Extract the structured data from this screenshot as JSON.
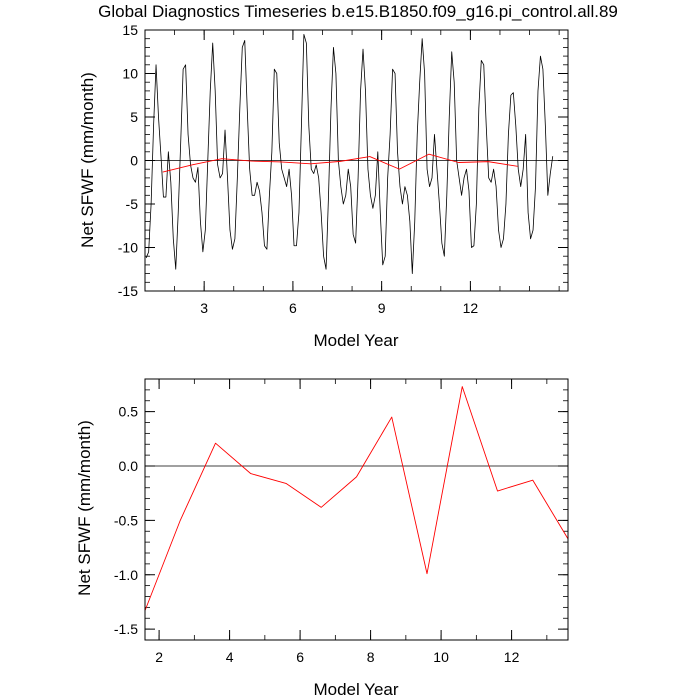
{
  "title": "Global Diagnostics Timeseries b.e15.B1850.f09_g16.pi_control.all.89",
  "colors": {
    "monthly": "#000000",
    "annual": "#ff0000",
    "zero_line": "#000000",
    "axis": "#000000"
  },
  "chart_data": [
    {
      "type": "line",
      "name": "monthly-panel",
      "xlabel": "Model Year",
      "ylabel": "Net SFWF (mm/month)",
      "xlim": [
        1.0,
        15.3
      ],
      "ylim": [
        -15,
        15
      ],
      "xticks": [
        3,
        6,
        9,
        12
      ],
      "xtick_labels": [
        "3",
        "6",
        "9",
        "12"
      ],
      "yticks": [
        -15,
        -10,
        -5,
        0,
        5,
        10,
        15
      ],
      "ytick_labels": [
        "-15",
        "-10",
        "-5",
        "0",
        "5",
        "10",
        "15"
      ],
      "zero_line": 0,
      "series": [
        {
          "name": "monthly",
          "x_start": 1.04,
          "x_step": 0.0833,
          "values": [
            -11.2,
            -10.5,
            -5,
            4,
            11,
            5,
            0.5,
            -4.2,
            -4.2,
            1,
            -2.5,
            -9,
            -12.5,
            -6,
            2,
            10.5,
            11,
            3,
            -0.5,
            -2,
            -2.5,
            -0.8,
            -7,
            -10.5,
            -8,
            0,
            8,
            13.5,
            8,
            -0.5,
            -2,
            -1.5,
            3.5,
            -2,
            -8,
            -10.2,
            -9,
            -2,
            6,
            13,
            13.8,
            6,
            -1,
            -4,
            -4,
            -2.5,
            -3.5,
            -6,
            -9.8,
            -10.2,
            -4,
            1,
            10.5,
            10,
            2,
            -1,
            -2,
            -3,
            -1,
            -4,
            -9.8,
            -9.8,
            -6,
            4,
            14.5,
            13.5,
            4,
            -1,
            -1.5,
            -0.5,
            -2,
            -6,
            -11,
            -12.5,
            -4,
            6,
            13,
            10,
            0,
            -3,
            -5,
            -4,
            -1,
            -3,
            -8.5,
            -9.5,
            -2,
            8,
            12.8,
            8,
            -1,
            -4,
            -5.5,
            -4,
            1,
            -6,
            -12,
            -11,
            -2,
            3,
            10.5,
            10,
            1,
            -3,
            -5,
            -3,
            -4,
            -7,
            -13,
            -7,
            3,
            9,
            14,
            10,
            -1,
            -3,
            -2,
            3,
            -1,
            -5,
            -9.5,
            -11,
            -4,
            5,
            12.5,
            9,
            0,
            -2,
            -4,
            -2,
            -1,
            -3.5,
            -10,
            -9.8,
            -5,
            6,
            11.5,
            11,
            4,
            -2,
            -2.5,
            -1,
            -3,
            -8,
            -10,
            -9,
            -5,
            3,
            7.5,
            7.8,
            4,
            -1,
            -3,
            -1,
            3,
            -6,
            -9,
            -8,
            -3,
            8,
            12,
            10.5,
            4,
            -4,
            -1.5,
            0.5
          ]
        },
        {
          "name": "annual",
          "x": [
            1.6,
            2.6,
            3.6,
            4.6,
            5.6,
            6.6,
            7.6,
            8.6,
            9.6,
            10.6,
            11.6,
            12.6,
            13.6
          ],
          "values": [
            -1.33,
            -0.5,
            0.21,
            -0.07,
            -0.16,
            -0.38,
            -0.1,
            0.45,
            -0.99,
            0.73,
            -0.23,
            -0.13,
            -0.67
          ]
        }
      ]
    },
    {
      "type": "line",
      "name": "annual-panel",
      "xlabel": "Model Year",
      "ylabel": "Net SFWF (mm/month)",
      "xlim": [
        1.6,
        13.6
      ],
      "ylim": [
        -1.6,
        0.8
      ],
      "xticks": [
        2,
        4,
        6,
        8,
        10,
        12
      ],
      "xtick_labels": [
        "2",
        "4",
        "6",
        "8",
        "10",
        "12"
      ],
      "yticks": [
        -1.5,
        -1.0,
        -0.5,
        0.0,
        0.5
      ],
      "ytick_labels": [
        "-1.5",
        "-1.0",
        "-0.5",
        "0.0",
        "0.5"
      ],
      "zero_line": 0,
      "series": [
        {
          "name": "annual",
          "x": [
            1.6,
            2.6,
            3.6,
            4.6,
            5.6,
            6.6,
            7.6,
            8.6,
            9.6,
            10.6,
            11.6,
            12.6,
            13.6
          ],
          "values": [
            -1.33,
            -0.5,
            0.21,
            -0.07,
            -0.16,
            -0.38,
            -0.1,
            0.45,
            -0.99,
            0.73,
            -0.23,
            -0.13,
            -0.67
          ]
        }
      ]
    }
  ]
}
